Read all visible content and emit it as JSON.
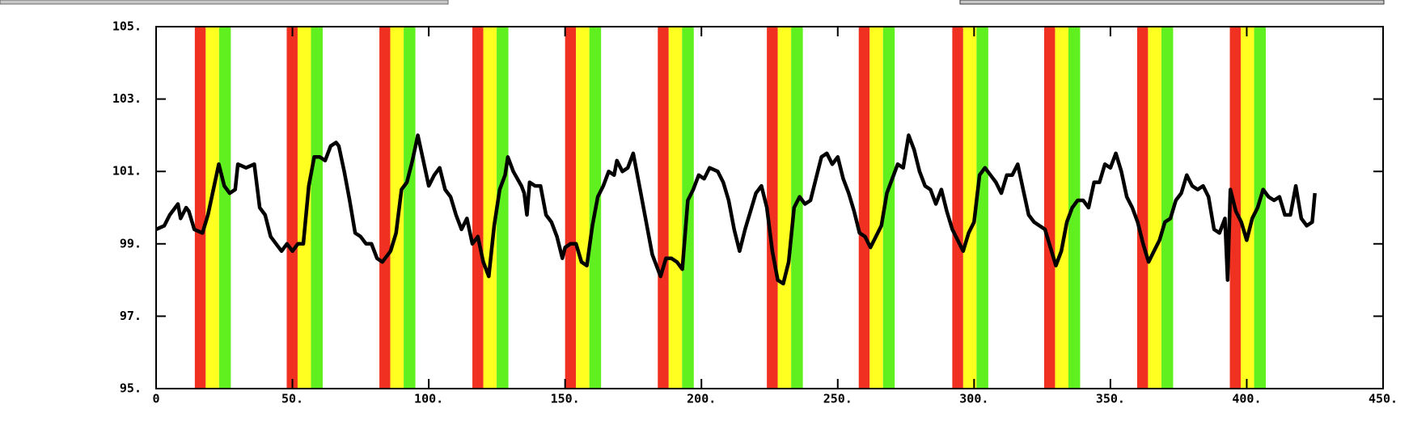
{
  "chart_data": {
    "type": "line",
    "x": [
      0,
      3,
      5,
      8,
      9,
      11,
      12,
      14,
      17,
      19,
      21,
      23,
      25,
      27,
      29,
      30,
      33,
      36,
      38,
      40,
      42,
      44,
      46,
      48,
      50,
      52,
      54,
      56,
      58,
      60,
      62,
      64,
      66,
      67,
      69,
      71,
      73,
      75,
      77,
      79,
      81,
      83,
      86,
      88,
      90,
      92,
      94,
      96,
      98,
      100,
      102,
      104,
      106,
      108,
      110,
      112,
      114,
      116,
      118,
      120,
      122,
      124,
      126,
      128,
      129,
      131,
      134,
      135,
      136,
      137,
      139,
      141,
      143,
      145,
      147,
      149,
      150,
      152,
      154,
      156,
      158,
      160,
      162,
      164,
      166,
      168,
      169,
      171,
      173,
      175,
      177,
      178,
      180,
      182,
      185,
      187,
      189,
      191,
      193,
      195,
      197,
      199,
      201,
      203,
      206,
      208,
      210,
      212,
      214,
      216,
      218,
      220,
      222,
      224,
      226,
      228,
      230,
      232,
      234,
      236,
      238,
      240,
      242,
      244,
      246,
      248,
      250,
      252,
      254,
      256,
      258,
      260,
      262,
      264,
      266,
      268,
      270,
      272,
      274,
      276,
      278,
      280,
      282,
      284,
      286,
      288,
      290,
      292,
      294,
      296,
      298,
      300,
      302,
      304,
      306,
      308,
      310,
      312,
      314,
      316,
      318,
      320,
      322,
      324,
      326,
      328,
      330,
      332,
      334,
      336,
      338,
      340,
      342,
      344,
      346,
      348,
      350,
      352,
      354,
      356,
      358,
      360,
      362,
      364,
      366,
      368,
      370,
      372,
      374,
      376,
      378,
      380,
      382,
      384,
      386,
      388,
      390,
      392,
      393,
      394,
      396,
      398,
      400,
      402,
      404,
      406,
      408,
      410,
      412,
      414,
      416,
      418,
      420,
      422,
      424,
      425
    ],
    "values": [
      99.4,
      99.5,
      99.8,
      100.1,
      99.7,
      100.0,
      99.9,
      99.4,
      99.3,
      99.8,
      100.5,
      101.2,
      100.6,
      100.4,
      100.5,
      101.2,
      101.1,
      101.2,
      100.0,
      99.8,
      99.2,
      99.0,
      98.8,
      99.0,
      98.8,
      99.0,
      99.0,
      100.6,
      101.4,
      101.4,
      101.3,
      101.7,
      101.8,
      101.7,
      101.0,
      100.2,
      99.3,
      99.2,
      99.0,
      99.0,
      98.6,
      98.5,
      98.8,
      99.3,
      100.5,
      100.7,
      101.3,
      102.0,
      101.3,
      100.6,
      100.9,
      101.1,
      100.5,
      100.3,
      99.8,
      99.4,
      99.7,
      99.0,
      99.2,
      98.5,
      98.1,
      99.5,
      100.5,
      100.9,
      101.4,
      101.0,
      100.6,
      100.4,
      99.8,
      100.7,
      100.6,
      100.6,
      99.8,
      99.6,
      99.2,
      98.6,
      98.9,
      99.0,
      99.0,
      98.5,
      98.4,
      99.5,
      100.3,
      100.6,
      101.0,
      100.9,
      101.3,
      101.0,
      101.1,
      101.5,
      100.7,
      100.3,
      99.5,
      98.7,
      98.1,
      98.6,
      98.6,
      98.5,
      98.3,
      100.2,
      100.5,
      100.9,
      100.8,
      101.1,
      101.0,
      100.7,
      100.2,
      99.4,
      98.8,
      99.4,
      99.9,
      100.4,
      100.6,
      100.0,
      98.8,
      98.0,
      97.9,
      98.5,
      100.0,
      100.3,
      100.1,
      100.2,
      100.8,
      101.4,
      101.5,
      101.2,
      101.4,
      100.8,
      100.4,
      99.9,
      99.3,
      99.2,
      98.9,
      99.2,
      99.5,
      100.4,
      100.8,
      101.2,
      101.1,
      102.0,
      101.6,
      101.0,
      100.6,
      100.5,
      100.1,
      100.5,
      99.9,
      99.4,
      99.1,
      98.8,
      99.3,
      99.6,
      100.9,
      101.1,
      100.9,
      100.7,
      100.4,
      100.9,
      100.9,
      101.2,
      100.5,
      99.8,
      99.6,
      99.5,
      99.4,
      98.9,
      98.4,
      98.8,
      99.6,
      100.0,
      100.2,
      100.2,
      100.0,
      100.7,
      100.7,
      101.2,
      101.1,
      101.5,
      101.0,
      100.3,
      100.0,
      99.6,
      99.0,
      98.5,
      98.8,
      99.1,
      99.6,
      99.7,
      100.2,
      100.4,
      100.9,
      100.6,
      100.5,
      100.6,
      100.3,
      99.4,
      99.3,
      99.7,
      98.0,
      100.5,
      99.9,
      99.6,
      99.1,
      99.7,
      100.0,
      100.5,
      100.3,
      100.2,
      100.3,
      99.8,
      99.8,
      100.6,
      99.7,
      99.5,
      99.6,
      100.4
    ],
    "color": "#000000",
    "bands": [
      [
        14.2,
        18.2,
        23.1,
        27.4
      ],
      [
        47.9,
        51.9,
        56.8,
        61.1
      ],
      [
        81.9,
        85.9,
        90.8,
        95.1
      ],
      [
        116,
        120,
        124.9,
        129.2
      ],
      [
        150,
        154,
        158.9,
        163.2
      ],
      [
        184,
        188,
        192.9,
        197.2
      ],
      [
        224,
        228,
        232.9,
        237.2
      ],
      [
        257.7,
        261.7,
        266.6,
        270.9
      ],
      [
        292,
        296,
        300.9,
        305.2
      ],
      [
        325.7,
        329.7,
        334.6,
        338.9
      ],
      [
        359.8,
        363.8,
        368.7,
        373
      ],
      [
        393.8,
        397.8,
        402.7,
        407
      ]
    ],
    "band_colors": [
      "#f03020",
      "#ffff20",
      "#60f020"
    ],
    "xlim": [
      0,
      450
    ],
    "xticks": [
      0,
      {
        "value": 50,
        "label": "50."
      },
      {
        "value": 100,
        "label": "100."
      },
      {
        "value": 150,
        "label": "150."
      },
      {
        "value": 200,
        "label": "200."
      },
      {
        "value": 250,
        "label": "250."
      },
      {
        "value": 300,
        "label": "300."
      },
      {
        "value": 350,
        "label": "350."
      },
      {
        "value": 400,
        "label": "400."
      },
      {
        "value": 450,
        "label": "450."
      }
    ],
    "ylim": [
      95,
      105
    ],
    "yticks": [
      {
        "value": 95,
        "label": "95."
      },
      {
        "value": 97,
        "label": "97."
      },
      {
        "value": 99,
        "label": "99."
      },
      {
        "value": 101,
        "label": "101."
      },
      {
        "value": 103,
        "label": "103."
      },
      {
        "value": 105,
        "label": "105."
      }
    ]
  }
}
